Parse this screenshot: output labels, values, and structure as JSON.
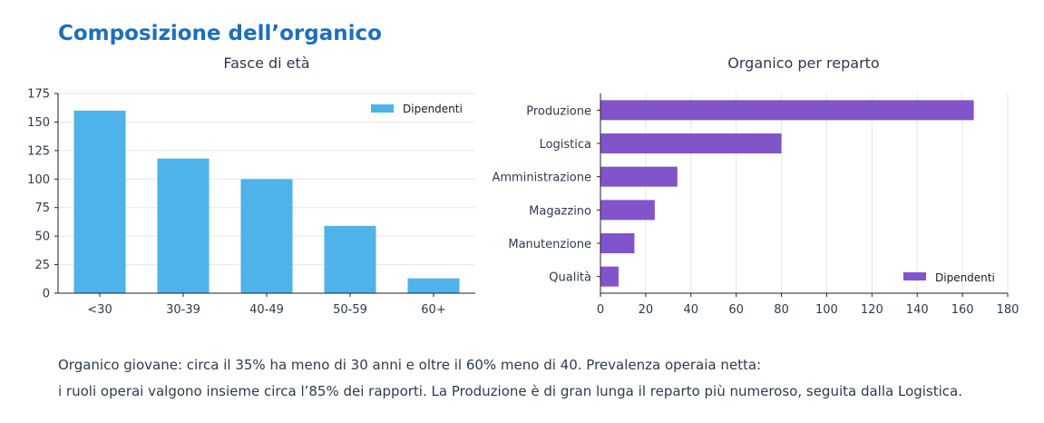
{
  "page_title": "Composizione dell’organico",
  "colors": {
    "title": "#1f6fb8",
    "text": "#2e3a4a",
    "age_bars": "#4eb3e8",
    "dept_bars": "#8155c9",
    "grid": "#e6e6e6"
  },
  "chart_data": [
    {
      "type": "bar",
      "title": "Fasce di età",
      "categories": [
        "<30",
        "30-39",
        "40-49",
        "50-59",
        "60+"
      ],
      "series": [
        {
          "name": "Dipendenti",
          "values": [
            160,
            118,
            100,
            59,
            13
          ]
        }
      ],
      "xlabel": "",
      "ylabel": "",
      "ylim": [
        0,
        175
      ],
      "yticks": [
        "0",
        "25",
        "50",
        "75",
        "100",
        "125",
        "150",
        "175"
      ],
      "grid": "horizontal",
      "legend": "top-right"
    },
    {
      "type": "bar",
      "orientation": "horizontal",
      "title": "Organico per reparto",
      "categories": [
        "Produzione",
        "Logistica",
        "Amministrazione",
        "Magazzino",
        "Manutenzione",
        "Qualità"
      ],
      "series": [
        {
          "name": "Dipendenti",
          "values": [
            165,
            80,
            34,
            24,
            15,
            8
          ]
        }
      ],
      "xlabel": "",
      "ylabel": "",
      "xlim": [
        0,
        180
      ],
      "xticks": [
        "0",
        "20",
        "40",
        "60",
        "80",
        "100",
        "120",
        "140",
        "160",
        "180"
      ],
      "grid": "vertical",
      "legend": "bottom-right"
    }
  ],
  "caption": {
    "line1": "Organico giovane: circa il 35% ha meno di 30 anni e oltre il 60% meno di 40. Prevalenza operaia netta:",
    "line2": "i ruoli operai valgono insieme circa l’85% dei rapporti. La Produzione è di gran lunga il reparto più numeroso, seguita dalla Logistica."
  }
}
